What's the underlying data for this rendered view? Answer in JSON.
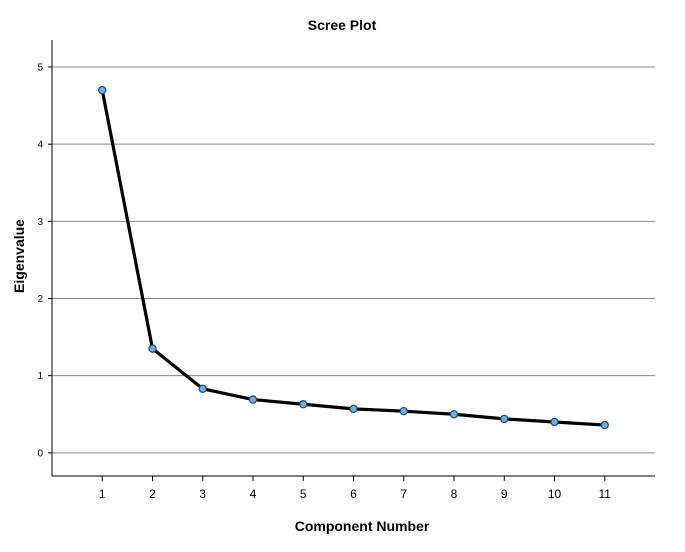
{
  "chart_data": {
    "type": "line",
    "title": "Scree Plot",
    "xlabel": "Component Number",
    "ylabel": "Eigenvalue",
    "x": [
      1,
      2,
      3,
      4,
      5,
      6,
      7,
      8,
      9,
      10,
      11
    ],
    "series": [
      {
        "values": [
          4.7,
          1.35,
          0.83,
          0.69,
          0.63,
          0.57,
          0.54,
          0.5,
          0.44,
          0.4,
          0.36
        ]
      }
    ],
    "xlim": [
      0,
      12
    ],
    "ylim": [
      -0.3,
      5.35
    ],
    "yticks": [
      0,
      1,
      2,
      3,
      4,
      5
    ],
    "xticks": [
      1,
      2,
      3,
      4,
      5,
      6,
      7,
      8,
      9,
      10,
      11
    ],
    "grid": true,
    "line_color": "#000000",
    "marker_fill": "#6ab0e6",
    "marker_edge": "#1c4a6e"
  }
}
